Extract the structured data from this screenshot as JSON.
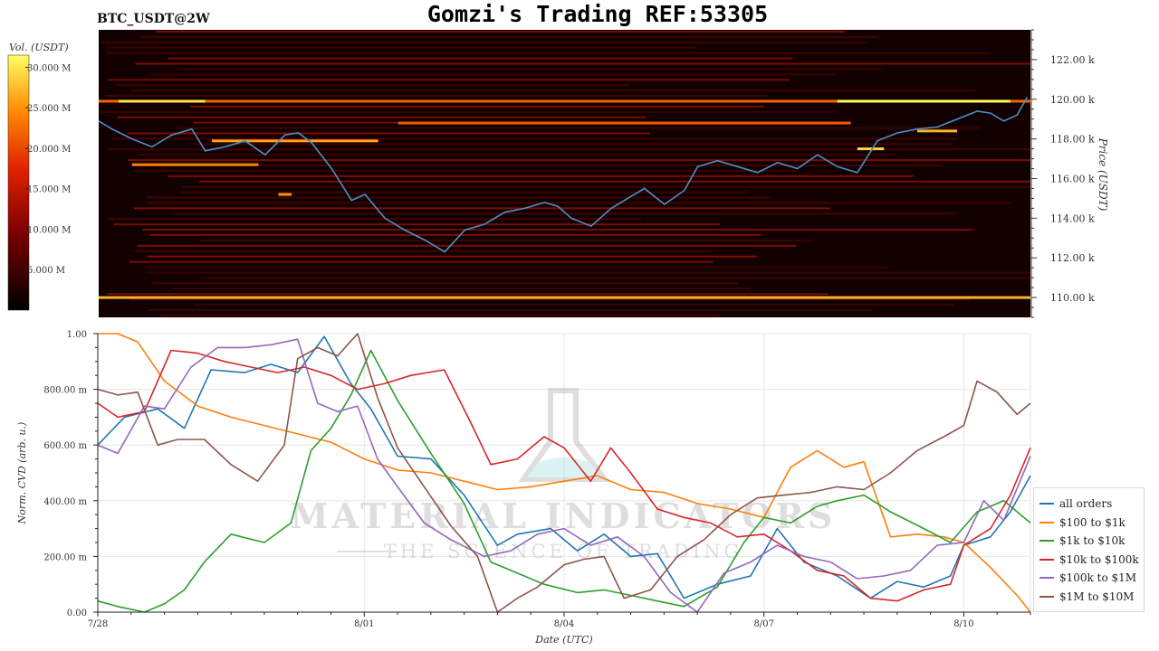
{
  "header": {
    "symbol": "BTC_USDT@2W",
    "title": "Gomzi's Trading REF:53305"
  },
  "watermark": {
    "line1": "MATERIAL INDICATORS",
    "line2": "THE SCIENCE OF TRADING"
  },
  "chart_data": [
    {
      "type": "heatmap",
      "title": "Gomzi's Trading REF:53305",
      "colorbar_label": "Vol. (USDT)",
      "colorbar_ticks": [
        "5.000 M",
        "10.000 M",
        "15.000 M",
        "20.000 M",
        "25.000 M",
        "30.000 M"
      ],
      "colorbar_values": [
        5,
        10,
        15,
        20,
        25,
        30
      ],
      "colorbar_range": [
        0,
        31.5
      ],
      "ylabel": "Price (USDT)",
      "ylim": [
        109,
        123.5
      ],
      "yticks": [
        "110.00 k",
        "112.00 k",
        "114.00 k",
        "116.00 k",
        "118.00 k",
        "120.00 k",
        "122.00 k"
      ],
      "ytick_values": [
        110,
        112,
        114,
        116,
        118,
        120,
        122
      ],
      "levels": [
        {
          "price": 110.0,
          "vol": 27,
          "from": 0,
          "to": 14
        },
        {
          "price": 119.9,
          "vol": 22,
          "from": 0,
          "to": 14
        },
        {
          "price": 119.9,
          "vol": 30,
          "from": 0.3,
          "to": 1.6
        },
        {
          "price": 119.9,
          "vol": 31,
          "from": 11.1,
          "to": 13.7
        },
        {
          "price": 118.8,
          "vol": 21,
          "from": 4.5,
          "to": 11.3
        },
        {
          "price": 117.9,
          "vol": 26,
          "from": 1.7,
          "to": 4.2
        },
        {
          "price": 116.7,
          "vol": 24,
          "from": 0.5,
          "to": 2.4
        },
        {
          "price": 115.2,
          "vol": 25,
          "from": 2.7,
          "to": 2.9
        },
        {
          "price": 117.5,
          "vol": 29,
          "from": 11.4,
          "to": 11.8
        },
        {
          "price": 118.4,
          "vol": 27,
          "from": 12.3,
          "to": 12.9
        }
      ],
      "price_series": {
        "name": "price",
        "x": [
          0,
          0.2,
          0.5,
          0.8,
          1.1,
          1.4,
          1.6,
          1.9,
          2.2,
          2.5,
          2.8,
          3.0,
          3.2,
          3.5,
          3.8,
          4.0,
          4.3,
          4.6,
          4.9,
          5.2,
          5.5,
          5.8,
          6.1,
          6.4,
          6.7,
          6.9,
          7.1,
          7.4,
          7.7,
          8.0,
          8.2,
          8.5,
          8.8,
          9.0,
          9.3,
          9.6,
          9.9,
          10.2,
          10.5,
          10.8,
          11.1,
          11.4,
          11.7,
          12.0,
          12.3,
          12.6,
          12.9,
          13.2,
          13.4,
          13.6,
          13.8,
          13.95
        ],
        "y": [
          118.9,
          118.5,
          118.0,
          117.6,
          118.2,
          118.5,
          117.4,
          117.6,
          117.9,
          117.2,
          118.2,
          118.3,
          117.8,
          116.5,
          114.9,
          115.2,
          114.0,
          113.4,
          112.9,
          112.3,
          113.4,
          113.7,
          114.3,
          114.5,
          114.8,
          114.6,
          114.0,
          113.6,
          114.5,
          115.1,
          115.5,
          114.7,
          115.4,
          116.6,
          116.9,
          116.6,
          116.3,
          116.8,
          116.5,
          117.2,
          116.6,
          116.3,
          117.9,
          118.3,
          118.5,
          118.6,
          119.0,
          119.4,
          119.3,
          118.9,
          119.2,
          120.1
        ]
      },
      "xlim": [
        0,
        14
      ]
    },
    {
      "type": "line",
      "xlabel": "Date (UTC)",
      "ylabel": "Norm. CVD (arb. u.)",
      "xticks": [
        "7/28",
        "8/01",
        "8/04",
        "8/07",
        "8/10"
      ],
      "xtick_values": [
        0,
        4,
        7,
        10,
        13
      ],
      "xlim": [
        0,
        14
      ],
      "ylim": [
        0,
        1
      ],
      "yticks": [
        "0.00",
        "200.00 m",
        "400.00 m",
        "600.00 m",
        "800.00 m",
        "1.00"
      ],
      "ytick_values": [
        0,
        0.2,
        0.4,
        0.6,
        0.8,
        1.0
      ],
      "grid": true,
      "legend_position": "right",
      "series": [
        {
          "name": "all orders",
          "color": "#1f77b4",
          "x": [
            0,
            0.4,
            0.9,
            1.3,
            1.7,
            2.2,
            2.6,
            3.0,
            3.4,
            3.8,
            4.1,
            4.5,
            5.0,
            5.5,
            6.0,
            6.3,
            6.8,
            7.2,
            7.6,
            8.0,
            8.4,
            8.8,
            9.3,
            9.8,
            10.2,
            10.6,
            11.1,
            11.6,
            12.0,
            12.4,
            12.8,
            13.0,
            13.4,
            13.7,
            14.0
          ],
          "y": [
            0.6,
            0.7,
            0.73,
            0.66,
            0.87,
            0.86,
            0.89,
            0.86,
            0.99,
            0.82,
            0.73,
            0.56,
            0.55,
            0.42,
            0.24,
            0.28,
            0.3,
            0.22,
            0.28,
            0.2,
            0.21,
            0.05,
            0.1,
            0.13,
            0.3,
            0.18,
            0.13,
            0.05,
            0.11,
            0.09,
            0.13,
            0.24,
            0.27,
            0.36,
            0.49
          ]
        },
        {
          "name": "$100 to $1k",
          "color": "#ff7f0e",
          "x": [
            0,
            0.3,
            0.6,
            1.0,
            1.5,
            2.0,
            2.5,
            3.0,
            3.5,
            4.0,
            4.5,
            5.0,
            5.5,
            6.0,
            6.5,
            7.0,
            7.5,
            8.0,
            8.5,
            9.0,
            9.5,
            10.0,
            10.4,
            10.8,
            11.2,
            11.5,
            11.9,
            12.3,
            12.7,
            13.0,
            13.4,
            13.8,
            14.0
          ],
          "y": [
            1.0,
            1.0,
            0.97,
            0.83,
            0.74,
            0.7,
            0.67,
            0.64,
            0.61,
            0.55,
            0.51,
            0.5,
            0.47,
            0.44,
            0.45,
            0.47,
            0.49,
            0.44,
            0.43,
            0.39,
            0.37,
            0.34,
            0.52,
            0.58,
            0.52,
            0.54,
            0.27,
            0.28,
            0.27,
            0.25,
            0.16,
            0.06,
            0.0
          ]
        },
        {
          "name": "$1k to $10k",
          "color": "#2ca02c",
          "x": [
            0,
            0.3,
            0.7,
            1.0,
            1.3,
            1.6,
            2.0,
            2.5,
            2.9,
            3.2,
            3.5,
            3.8,
            4.1,
            4.5,
            5.0,
            5.5,
            5.9,
            6.2,
            6.7,
            7.2,
            7.6,
            8.0,
            8.4,
            8.8,
            9.3,
            9.7,
            10.0,
            10.4,
            10.8,
            11.1,
            11.5,
            11.9,
            12.4,
            12.8,
            13.2,
            13.6,
            14.0
          ],
          "y": [
            0.04,
            0.02,
            0.0,
            0.03,
            0.08,
            0.18,
            0.28,
            0.25,
            0.32,
            0.58,
            0.66,
            0.78,
            0.94,
            0.76,
            0.57,
            0.39,
            0.18,
            0.15,
            0.1,
            0.07,
            0.08,
            0.06,
            0.04,
            0.02,
            0.09,
            0.25,
            0.34,
            0.32,
            0.38,
            0.4,
            0.42,
            0.36,
            0.3,
            0.25,
            0.36,
            0.4,
            0.32
          ]
        },
        {
          "name": "$10k to $100k",
          "color": "#d62728",
          "x": [
            0,
            0.3,
            0.7,
            1.1,
            1.5,
            1.9,
            2.3,
            2.7,
            3.1,
            3.5,
            3.9,
            4.3,
            4.7,
            5.2,
            5.6,
            5.9,
            6.3,
            6.7,
            7.0,
            7.4,
            7.7,
            8.0,
            8.4,
            8.8,
            9.2,
            9.6,
            10.0,
            10.4,
            10.8,
            11.2,
            11.6,
            12.0,
            12.4,
            12.8,
            13.0,
            13.4,
            13.7,
            14.0
          ],
          "y": [
            0.75,
            0.7,
            0.72,
            0.94,
            0.93,
            0.9,
            0.88,
            0.86,
            0.88,
            0.85,
            0.8,
            0.82,
            0.85,
            0.87,
            0.68,
            0.53,
            0.55,
            0.63,
            0.59,
            0.47,
            0.59,
            0.5,
            0.37,
            0.34,
            0.32,
            0.27,
            0.28,
            0.22,
            0.15,
            0.13,
            0.05,
            0.04,
            0.08,
            0.1,
            0.24,
            0.3,
            0.42,
            0.59
          ]
        },
        {
          "name": "$100k to $1M",
          "color": "#9467bd",
          "x": [
            0,
            0.3,
            0.7,
            1.0,
            1.4,
            1.8,
            2.2,
            2.6,
            3.0,
            3.3,
            3.6,
            3.9,
            4.2,
            4.5,
            4.9,
            5.3,
            5.8,
            6.2,
            6.6,
            7.0,
            7.4,
            7.8,
            8.2,
            8.6,
            9.0,
            9.4,
            9.8,
            10.2,
            10.6,
            11.0,
            11.4,
            11.8,
            12.2,
            12.6,
            13.0,
            13.3,
            13.6,
            14.0
          ],
          "y": [
            0.6,
            0.57,
            0.74,
            0.73,
            0.88,
            0.95,
            0.95,
            0.96,
            0.98,
            0.75,
            0.72,
            0.74,
            0.55,
            0.45,
            0.32,
            0.26,
            0.2,
            0.22,
            0.28,
            0.3,
            0.24,
            0.27,
            0.2,
            0.07,
            0.0,
            0.14,
            0.18,
            0.24,
            0.2,
            0.18,
            0.12,
            0.13,
            0.15,
            0.24,
            0.25,
            0.4,
            0.33,
            0.56
          ]
        },
        {
          "name": "$1M to $10M",
          "color": "#8c564b",
          "x": [
            0,
            0.3,
            0.6,
            0.9,
            1.2,
            1.6,
            2.0,
            2.4,
            2.8,
            3.0,
            3.3,
            3.6,
            3.9,
            4.2,
            4.5,
            4.9,
            5.3,
            5.7,
            6.0,
            6.3,
            6.6,
            7.0,
            7.3,
            7.6,
            7.9,
            8.3,
            8.7,
            9.1,
            9.5,
            9.9,
            10.3,
            10.7,
            11.1,
            11.5,
            11.9,
            12.3,
            12.7,
            13.0,
            13.2,
            13.5,
            13.8,
            14.0
          ],
          "y": [
            0.8,
            0.78,
            0.79,
            0.6,
            0.62,
            0.62,
            0.53,
            0.47,
            0.6,
            0.91,
            0.95,
            0.92,
            1.0,
            0.77,
            0.59,
            0.45,
            0.31,
            0.2,
            0.0,
            0.05,
            0.09,
            0.17,
            0.19,
            0.2,
            0.05,
            0.08,
            0.2,
            0.26,
            0.35,
            0.41,
            0.42,
            0.43,
            0.45,
            0.44,
            0.5,
            0.58,
            0.63,
            0.67,
            0.83,
            0.79,
            0.71,
            0.75
          ]
        }
      ]
    }
  ]
}
